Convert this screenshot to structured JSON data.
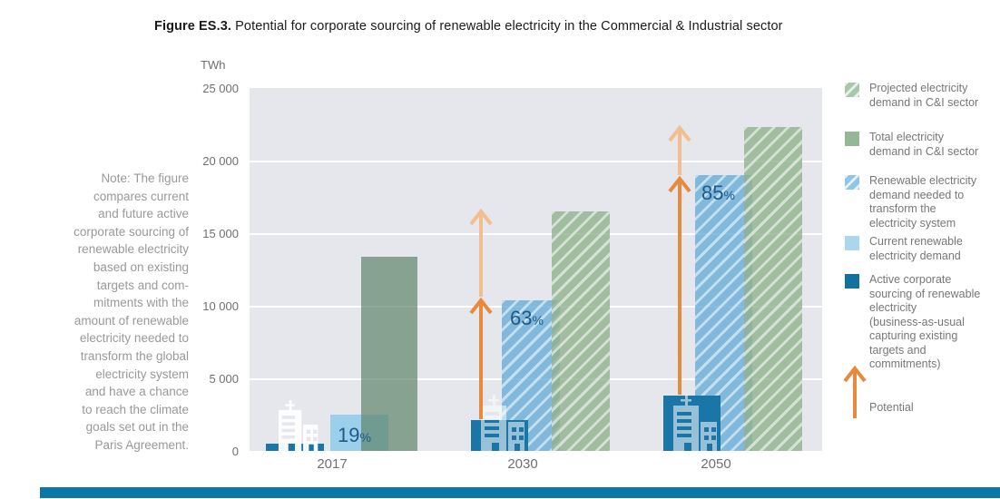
{
  "title": {
    "label": "Figure ES.3.",
    "text": " Potential for corporate sourcing of renewable electricity in the Commercial & Industrial sector"
  },
  "note": {
    "text": "Note: The figure\ncompares current\nand future active\ncorporate sourcing of\nrenewable electricity\nbased on existing\ntargets and com-\nmitments with the\namount of renewable\nelectricity needed to\ntransform the global\nelectricity system\nand have a chance\nto reach the climate\ngoals set out in the\nParis Agreement."
  },
  "colors": {
    "dark_blue": "#1b76a8",
    "light_blue": "#9ccfeb",
    "hatched_blue": "#8ec6e6",
    "solid_green": "#93b894",
    "hatched_green": "#a9c8ab",
    "orange": "#e88a3e",
    "light_orange": "#f3bd8d",
    "plot_background": "#e5e7ec",
    "bottom_band": "#0c76a7",
    "percent_text": "#1d5a88"
  },
  "chart_data": {
    "type": "bar",
    "title": "Potential for corporate sourcing of renewable electricity in the Commercial & Industrial sector",
    "unit": "TWh",
    "categories": [
      "2017",
      "2030",
      "2050"
    ],
    "ylim": [
      0,
      25000
    ],
    "y_ticks": [
      "25 000",
      "20 000",
      "15 000",
      "10 000",
      "5 000",
      "0"
    ],
    "grid": true,
    "legend_position": "right",
    "series": [
      {
        "name": "Projected electricity demand in C&I sector",
        "style": "hatched-green",
        "values": [
          null,
          16500,
          22300
        ]
      },
      {
        "name": "Total electricity demand in C&I sector",
        "style": "solid-green",
        "values": [
          13400,
          null,
          null
        ]
      },
      {
        "name": "Renewable electricity demand needed to transform the electricity system",
        "style": "hatched-blue",
        "values": [
          null,
          10400,
          19000
        ]
      },
      {
        "name": "Current renewable electricity demand",
        "style": "light-blue",
        "values": [
          2500,
          null,
          null
        ]
      },
      {
        "name": "Active corporate sourcing of renewable electricity (business-as-usual capturing existing targets and commitments)",
        "style": "dark-blue",
        "values": [
          500,
          2100,
          3800
        ]
      }
    ],
    "percent_labels": [
      {
        "category": "2017",
        "value": "19"
      },
      {
        "category": "2030",
        "value": "63"
      },
      {
        "category": "2050",
        "value": "85"
      }
    ],
    "percent_suffix": "%",
    "annotations": [
      "Potential arrows between active corporate sourcing and renewable electricity demand needed"
    ]
  },
  "legend": {
    "items": [
      {
        "label": "Projected electricity\ndemand in C&I sector"
      },
      {
        "label": "Total electricity\ndemand in C&I sector"
      },
      {
        "label": "Renewable electricity\ndemand needed to\ntransform the\nelectricity system"
      },
      {
        "label": "Current renewable\nelectricity demand"
      },
      {
        "label": "Active corporate\nsourcing of renewable\nelectricity\n(business-as-usual\ncapturing existing\ntargets and\ncommitments)"
      },
      {
        "label": "Potential"
      }
    ]
  }
}
